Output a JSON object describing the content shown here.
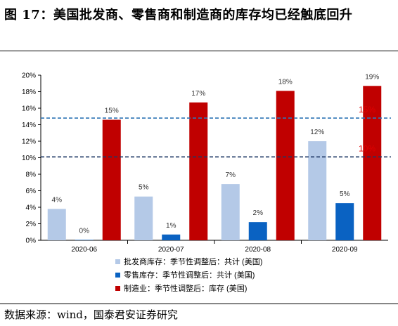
{
  "figure": {
    "title": "图 17：美国批发商、零售商和制造商的库存均已经触底回升",
    "source": "数据来源：wind，国泰君安证券研究"
  },
  "chart_data": {
    "type": "bar",
    "categories": [
      "2020-06",
      "2020-07",
      "2020-08",
      "2020-09"
    ],
    "series": [
      {
        "name": "批发商库存：季节性调整后：共计 (美国)",
        "color": "#b4c9e7",
        "values": [
          3.8,
          5.3,
          6.8,
          12.0
        ],
        "labels": [
          "4%",
          "5%",
          "7%",
          "12%"
        ]
      },
      {
        "name": "零售库存：季节性调整后：共计 (美国)",
        "color": "#0a62c2",
        "values": [
          0.05,
          0.7,
          2.2,
          4.5
        ],
        "labels": [
          "0%",
          "1%",
          "2%",
          "5%"
        ]
      },
      {
        "name": "制造业：季节性调整后：库存 (美国)",
        "color": "#c00000",
        "values": [
          14.6,
          16.7,
          18.1,
          18.7
        ],
        "labels": [
          "15%",
          "17%",
          "18%",
          "19%"
        ]
      }
    ],
    "reference_lines": [
      {
        "value": 14.8,
        "label": "15%",
        "color": "#2e75b6"
      },
      {
        "value": 10.1,
        "label": "10%",
        "color": "#1f3864"
      }
    ],
    "ylim": [
      0,
      20
    ],
    "yticks": [
      "0%",
      "2%",
      "4%",
      "6%",
      "8%",
      "10%",
      "12%",
      "14%",
      "16%",
      "18%",
      "20%"
    ],
    "grid": false,
    "legend_position": "bottom"
  }
}
